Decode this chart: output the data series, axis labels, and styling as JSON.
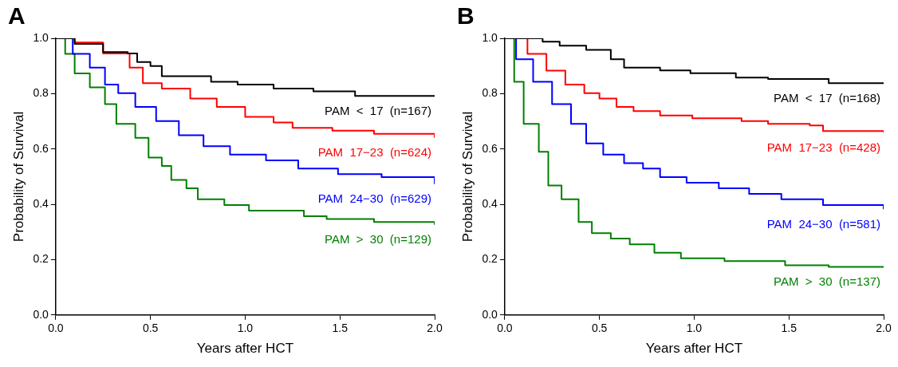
{
  "chart_data": [
    {
      "type": "step",
      "title": "A",
      "xlabel": "Years after HCT",
      "ylabel": "Probability of Survival",
      "xlim": [
        0,
        2
      ],
      "ylim": [
        0,
        1
      ],
      "xticks": [
        {
          "value": 0,
          "label": "0.0"
        },
        {
          "value": 0.5,
          "label": "0.5"
        },
        {
          "value": 1,
          "label": "1.0"
        },
        {
          "value": 1.5,
          "label": "1.5"
        },
        {
          "value": 2,
          "label": "2.0"
        }
      ],
      "yticks": [
        {
          "value": 0,
          "label": "0.0"
        },
        {
          "value": 0.2,
          "label": "0.2"
        },
        {
          "value": 0.4,
          "label": "0.4"
        },
        {
          "value": 0.6,
          "label": "0.6"
        },
        {
          "value": 0.8,
          "label": "0.8"
        },
        {
          "value": 1,
          "label": "1.0"
        }
      ],
      "grid": false,
      "legend": false,
      "marker": "none",
      "series": [
        {
          "name": "PAM  <  17  (n=167)",
          "color": "#000000",
          "x": [
            0,
            0.1,
            0.25,
            0.38,
            0.43,
            0.5,
            0.56,
            0.82,
            0.96,
            1.15,
            1.36,
            1.58,
            2.0
          ],
          "values": [
            1,
            0.98,
            0.95,
            0.945,
            0.914,
            0.9,
            0.863,
            0.843,
            0.833,
            0.818,
            0.808,
            0.792,
            0.792
          ]
        },
        {
          "name": "PAM  17−23  (n=624)",
          "color": "#ff0000",
          "x": [
            0,
            0.1,
            0.25,
            0.39,
            0.46,
            0.56,
            0.71,
            0.85,
            1.0,
            1.15,
            1.25,
            1.46,
            1.68,
            2.0
          ],
          "values": [
            1,
            0.985,
            0.945,
            0.894,
            0.838,
            0.818,
            0.782,
            0.752,
            0.716,
            0.696,
            0.676,
            0.666,
            0.655,
            0.64
          ]
        },
        {
          "name": "PAM  24−30  (n=629)",
          "color": "#0000ff",
          "x": [
            0,
            0.09,
            0.18,
            0.26,
            0.33,
            0.42,
            0.53,
            0.65,
            0.78,
            0.92,
            1.11,
            1.28,
            1.49,
            1.72,
            2.0
          ],
          "values": [
            1,
            0.944,
            0.894,
            0.833,
            0.802,
            0.752,
            0.701,
            0.65,
            0.61,
            0.58,
            0.559,
            0.529,
            0.509,
            0.498,
            0.473
          ]
        },
        {
          "name": "PAM  >  30  (n=129)",
          "color": "#008000",
          "x": [
            0,
            0.05,
            0.1,
            0.18,
            0.26,
            0.32,
            0.42,
            0.49,
            0.56,
            0.61,
            0.69,
            0.75,
            0.89,
            1.02,
            1.31,
            1.43,
            1.68,
            2.0
          ],
          "values": [
            1,
            0.944,
            0.873,
            0.823,
            0.762,
            0.691,
            0.64,
            0.569,
            0.539,
            0.488,
            0.458,
            0.418,
            0.397,
            0.377,
            0.357,
            0.347,
            0.336,
            0.326
          ]
        }
      ]
    },
    {
      "type": "step",
      "title": "B",
      "xlabel": "Years after HCT",
      "ylabel": "Probability of Survival",
      "xlim": [
        0,
        2
      ],
      "ylim": [
        0,
        1
      ],
      "xticks": [
        {
          "value": 0,
          "label": "0.0"
        },
        {
          "value": 0.5,
          "label": "0.5"
        },
        {
          "value": 1,
          "label": "1.0"
        },
        {
          "value": 1.5,
          "label": "1.5"
        },
        {
          "value": 2,
          "label": "2.0"
        }
      ],
      "yticks": [
        {
          "value": 0,
          "label": "0.0"
        },
        {
          "value": 0.2,
          "label": "0.2"
        },
        {
          "value": 0.4,
          "label": "0.4"
        },
        {
          "value": 0.6,
          "label": "0.6"
        },
        {
          "value": 0.8,
          "label": "0.8"
        },
        {
          "value": 1,
          "label": "1.0"
        }
      ],
      "grid": false,
      "legend": false,
      "marker": "none",
      "series": [
        {
          "name": "PAM  <  17  (n=168)",
          "color": "#000000",
          "x": [
            0,
            0.2,
            0.29,
            0.43,
            0.56,
            0.63,
            0.82,
            0.98,
            1.22,
            1.39,
            1.71,
            2.0
          ],
          "values": [
            1,
            0.988,
            0.973,
            0.958,
            0.924,
            0.894,
            0.884,
            0.874,
            0.858,
            0.853,
            0.838,
            0.838
          ]
        },
        {
          "name": "PAM  17−23  (n=428)",
          "color": "#ff0000",
          "x": [
            0,
            0.12,
            0.22,
            0.32,
            0.42,
            0.5,
            0.59,
            0.68,
            0.82,
            0.99,
            1.25,
            1.39,
            1.61,
            1.68,
            2.0
          ],
          "values": [
            1,
            0.944,
            0.883,
            0.833,
            0.802,
            0.782,
            0.752,
            0.737,
            0.721,
            0.711,
            0.701,
            0.691,
            0.685,
            0.665,
            0.66
          ]
        },
        {
          "name": "PAM  24−30  (n=581)",
          "color": "#0000ff",
          "x": [
            0,
            0.06,
            0.15,
            0.25,
            0.35,
            0.43,
            0.52,
            0.63,
            0.73,
            0.82,
            0.96,
            1.13,
            1.29,
            1.46,
            1.68,
            2.0
          ],
          "values": [
            1,
            0.924,
            0.843,
            0.762,
            0.691,
            0.62,
            0.58,
            0.549,
            0.529,
            0.498,
            0.478,
            0.458,
            0.438,
            0.418,
            0.397,
            0.382
          ]
        },
        {
          "name": "PAM  >  30  (n=137)",
          "color": "#008000",
          "x": [
            0,
            0.05,
            0.1,
            0.18,
            0.23,
            0.3,
            0.39,
            0.46,
            0.56,
            0.66,
            0.79,
            0.93,
            1.16,
            1.48,
            1.71,
            2.0
          ],
          "values": [
            1,
            0.843,
            0.691,
            0.59,
            0.468,
            0.418,
            0.336,
            0.296,
            0.276,
            0.255,
            0.225,
            0.205,
            0.195,
            0.18,
            0.174,
            0.174
          ]
        }
      ]
    }
  ]
}
